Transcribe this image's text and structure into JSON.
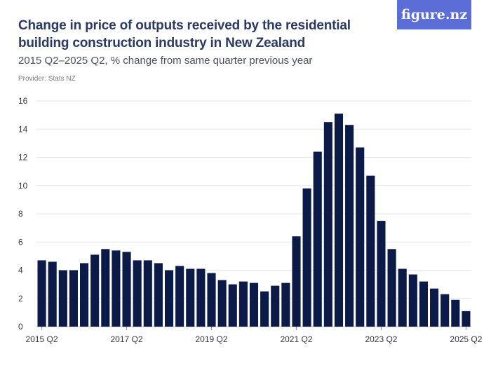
{
  "logo_text": "figure.nz",
  "chart_data": {
    "type": "bar",
    "title": "Change in price of outputs received by the residential building construction industry in New Zealand",
    "subtitle": "2015 Q2–2025 Q2, % change from same quarter previous year",
    "provider": "Provider: Stats NZ",
    "xlabel": "",
    "ylabel": "",
    "ylim": [
      0,
      16
    ],
    "yticks": [
      0,
      2,
      4,
      6,
      8,
      10,
      12,
      14,
      16
    ],
    "grid": true,
    "bar_color": "#0c1a47",
    "xtick_labels": [
      {
        "index": 0,
        "label": "2015 Q2"
      },
      {
        "index": 8,
        "label": "2017 Q2"
      },
      {
        "index": 16,
        "label": "2019 Q2"
      },
      {
        "index": 24,
        "label": "2021 Q2"
      },
      {
        "index": 32,
        "label": "2023 Q2"
      },
      {
        "index": 40,
        "label": "2025 Q2"
      }
    ],
    "categories": [
      "2015 Q2",
      "2015 Q3",
      "2015 Q4",
      "2016 Q1",
      "2016 Q2",
      "2016 Q3",
      "2016 Q4",
      "2017 Q1",
      "2017 Q2",
      "2017 Q3",
      "2017 Q4",
      "2018 Q1",
      "2018 Q2",
      "2018 Q3",
      "2018 Q4",
      "2019 Q1",
      "2019 Q2",
      "2019 Q3",
      "2019 Q4",
      "2020 Q1",
      "2020 Q2",
      "2020 Q3",
      "2020 Q4",
      "2021 Q1",
      "2021 Q2",
      "2021 Q3",
      "2021 Q4",
      "2022 Q1",
      "2022 Q2",
      "2022 Q3",
      "2022 Q4",
      "2023 Q1",
      "2023 Q2",
      "2023 Q3",
      "2023 Q4",
      "2024 Q1",
      "2024 Q2",
      "2024 Q3",
      "2024 Q4",
      "2025 Q1",
      "2025 Q2"
    ],
    "values": [
      4.7,
      4.6,
      4.0,
      4.0,
      4.5,
      5.1,
      5.5,
      5.4,
      5.3,
      4.7,
      4.7,
      4.5,
      4.0,
      4.3,
      4.1,
      4.1,
      3.8,
      3.3,
      3.0,
      3.2,
      3.1,
      2.5,
      2.9,
      3.1,
      6.4,
      9.8,
      12.4,
      14.5,
      15.1,
      14.3,
      12.7,
      10.7,
      7.5,
      5.5,
      4.1,
      3.7,
      3.2,
      2.7,
      2.3,
      1.9,
      1.1
    ]
  }
}
